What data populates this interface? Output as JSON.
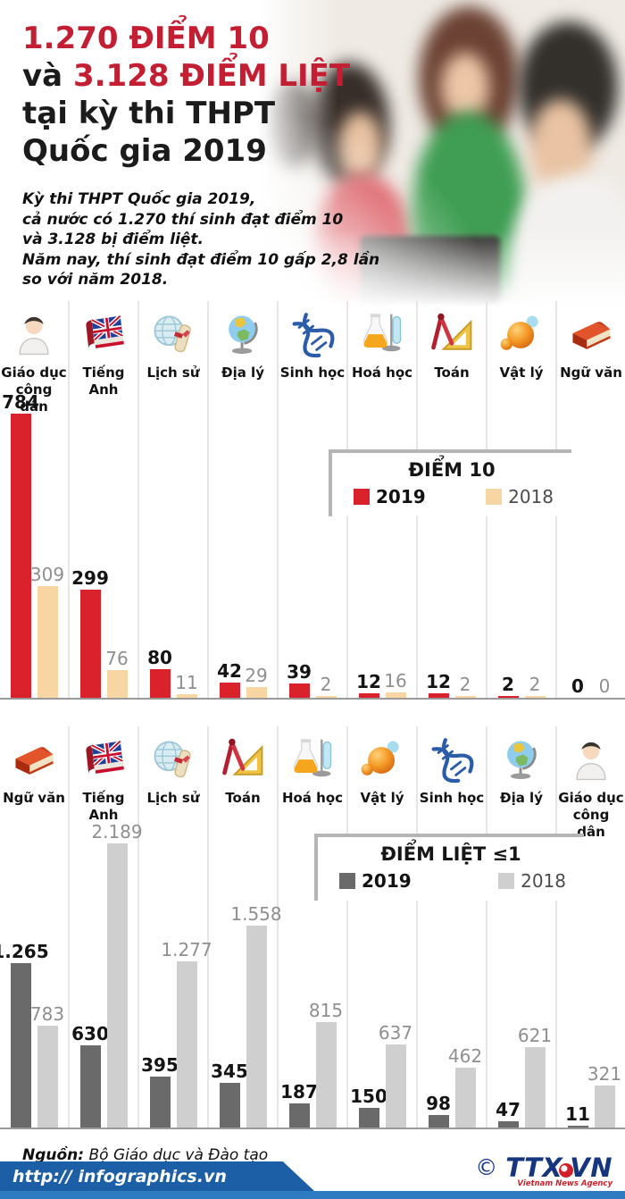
{
  "header": {
    "title": {
      "line1": "1.270 ĐIỂM 10",
      "line2_prefix": "và ",
      "line2_highlight": "3.128 ĐIỂM LIỆT",
      "line3": "tại kỳ thi THPT",
      "line4": "Quốc gia 2019",
      "highlight_color": "#c41e33"
    },
    "intro": {
      "lines": [
        "Kỳ thi THPT Quốc gia 2019,",
        "cả nước có 1.270 thí sinh đạt điểm 10",
        "và 3.128 bị điểm liệt.",
        "Năm nay, thí sinh đạt điểm 10 gấp 2,8 lần",
        "so với năm 2018."
      ]
    }
  },
  "chart_data": [
    {
      "type": "bar",
      "title": "ĐIỂM 10",
      "legend_position": "overlay-center",
      "grid": "column-separators",
      "categories": [
        "Giáo dục công dân",
        "Tiếng Anh",
        "Lịch sử",
        "Địa lý",
        "Sinh học",
        "Hoá học",
        "Toán",
        "Vật lý",
        "Ngữ văn"
      ],
      "icons": [
        "civic-education-person-icon",
        "english-flag-book-icon",
        "history-globe-scroll-icon",
        "geography-globe-icon",
        "biology-dna-icon",
        "chemistry-flask-icon",
        "math-geometry-icon",
        "physics-atom-icon",
        "literature-book-icon"
      ],
      "series": [
        {
          "name": "2019",
          "color": "#d9222b",
          "values": [
            784,
            299,
            80,
            42,
            39,
            12,
            12,
            2,
            0
          ],
          "labels": [
            "784",
            "299",
            "80",
            "42",
            "39",
            "12",
            "12",
            "2",
            "0"
          ]
        },
        {
          "name": "2018",
          "color": "#f7d6a4",
          "values": [
            309,
            76,
            11,
            29,
            2,
            16,
            2,
            2,
            0
          ],
          "labels": [
            "309",
            "76",
            "11",
            "29",
            "2",
            "16",
            "2",
            "2",
            "0"
          ]
        }
      ],
      "ylim": [
        0,
        784
      ]
    },
    {
      "type": "bar",
      "title": "ĐIỂM LIỆT ≤1",
      "legend_position": "overlay-center",
      "grid": "column-separators",
      "categories": [
        "Ngữ văn",
        "Tiếng Anh",
        "Lịch sử",
        "Toán",
        "Hoá học",
        "Vật lý",
        "Sinh học",
        "Địa lý",
        "Giáo dục công dân"
      ],
      "icons": [
        "literature-book-icon",
        "english-flag-book-icon",
        "history-globe-scroll-icon",
        "math-geometry-icon",
        "chemistry-flask-icon",
        "physics-atom-icon",
        "biology-dna-icon",
        "geography-globe-icon",
        "civic-education-person-icon"
      ],
      "series": [
        {
          "name": "2019",
          "color": "#6a6a6a",
          "values": [
            1265,
            630,
            395,
            345,
            187,
            150,
            98,
            47,
            11
          ],
          "labels": [
            "1.265",
            "630",
            "395",
            "345",
            "187",
            "150",
            "98",
            "47",
            "11"
          ]
        },
        {
          "name": "2018",
          "color": "#cfcfcf",
          "values": [
            783,
            2189,
            1277,
            1558,
            815,
            637,
            462,
            621,
            321
          ],
          "labels": [
            "783",
            "2.189",
            "1.277",
            "1.558",
            "815",
            "637",
            "462",
            "621",
            "321"
          ]
        }
      ],
      "ylim": [
        0,
        2189
      ]
    }
  ],
  "footer": {
    "source_label": "Nguồn:",
    "source_text": " Bộ Giáo dục và Đào tạo",
    "website": "http:// infographics.vn",
    "copyright_symbol": "©",
    "agency_name_pre": "TTX",
    "agency_name_post": "VN",
    "agency_subtitle": "Vietnam News Agency"
  },
  "colors": {
    "title_highlight": "#c41e33",
    "bar_2019_diem10": "#d9222b",
    "bar_2018_diem10": "#f7d6a4",
    "bar_2019_liet": "#6a6a6a",
    "bar_2018_liet": "#cfcfcf",
    "footer_banner_blue": "#1d5fa6",
    "bottom_strip_blue": "#2e7bc2",
    "agency_blue": "#15357f",
    "agency_red": "#d0202a"
  }
}
